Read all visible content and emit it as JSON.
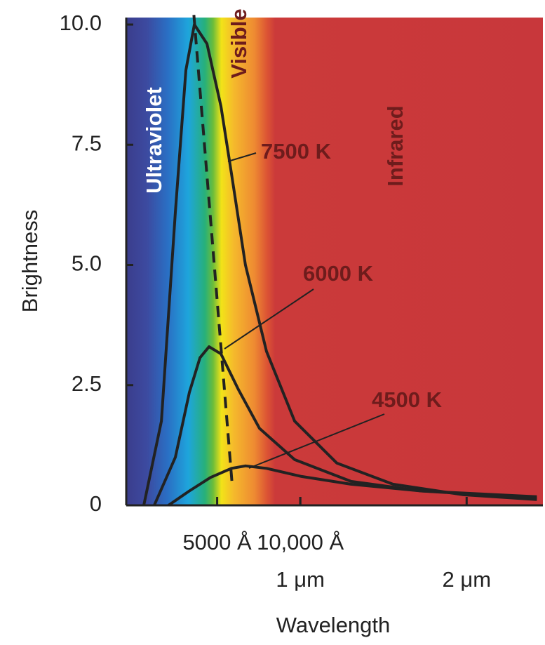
{
  "chart_data": {
    "type": "line",
    "xlabel": "Wavelength",
    "ylabel": "Brightness",
    "xlim": [
      0,
      24500
    ],
    "ylim": [
      0,
      10
    ],
    "xticks": [
      {
        "value": 5000,
        "label": "5000 Å"
      },
      {
        "value": 10000,
        "label": "10,000 Å"
      }
    ],
    "x2ticks": [
      {
        "value": 10000,
        "label": "1 μm"
      },
      {
        "value": 20000,
        "label": "2 μm"
      }
    ],
    "yticks": [
      0,
      2.5,
      {
        "value": 5,
        "label": "5.0"
      },
      7.5,
      {
        "value": 10,
        "label": "10.0"
      }
    ],
    "series": [
      {
        "name": "7500 K",
        "color": "#222222",
        "x": [
          590,
          1650,
          2490,
          3120,
          3630,
          4390,
          5230,
          5860,
          6700,
          7970,
          9660,
          12190,
          15570,
          19790,
          24220
        ],
        "values": [
          0,
          1.75,
          6.1,
          9.05,
          10,
          9.6,
          8.3,
          6.9,
          5.0,
          3.2,
          1.75,
          0.88,
          0.44,
          0.22,
          0.12
        ]
      },
      {
        "name": "6000 K",
        "color": "#222222",
        "x": [
          1220,
          2490,
          3330,
          3970,
          4510,
          5230,
          6290,
          7550,
          9660,
          13040,
          17260,
          24220
        ],
        "values": [
          0,
          1.0,
          2.35,
          3.07,
          3.3,
          3.15,
          2.4,
          1.6,
          0.95,
          0.5,
          0.3,
          0.15
        ]
      },
      {
        "name": "4500 K",
        "color": "#222222",
        "x": [
          2070,
          3330,
          4600,
          5860,
          6710,
          7970,
          10080,
          13040,
          17260,
          24220
        ],
        "values": [
          0,
          0.3,
          0.58,
          0.77,
          0.82,
          0.77,
          0.6,
          0.44,
          0.3,
          0.18
        ]
      }
    ],
    "peak_line": {
      "x": [
        3600,
        5900
      ],
      "values": [
        10.2,
        0.45
      ],
      "color": "#222222",
      "dashed": true
    },
    "regions": [
      "Ultraviolet",
      "Visible",
      "Infrared"
    ]
  }
}
